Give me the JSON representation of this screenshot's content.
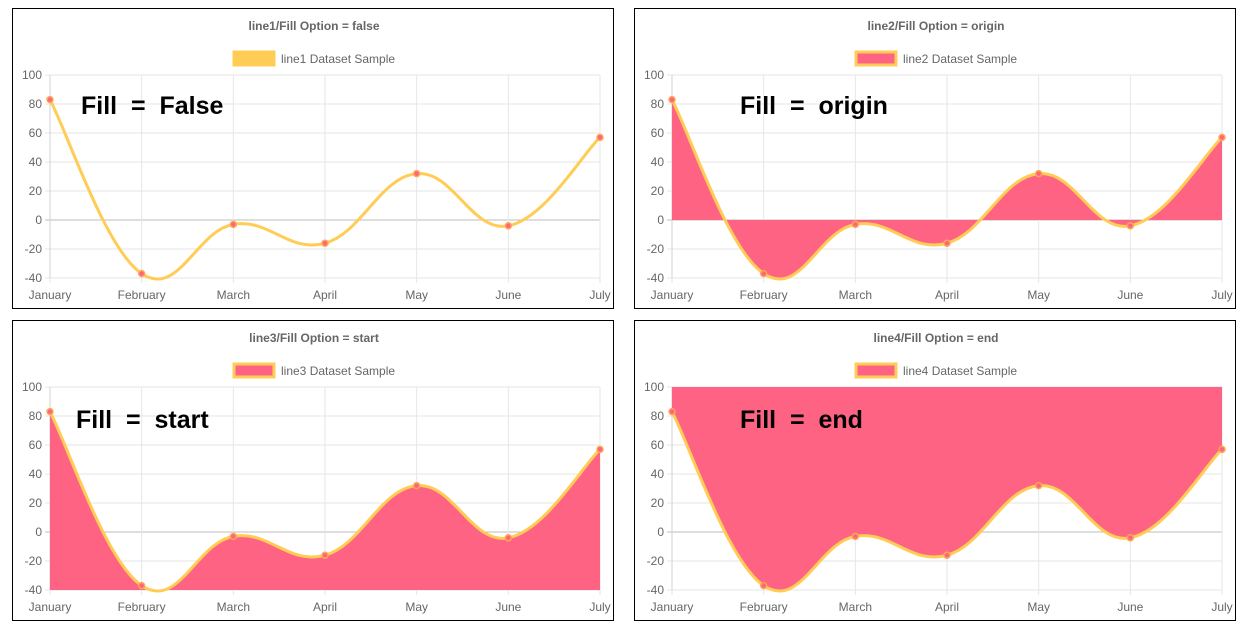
{
  "chart_data": [
    {
      "type": "line",
      "title": "line1/Fill Option = false",
      "legend": "line1 Dataset Sample",
      "annotation": "Fill  =  False",
      "fill": "false",
      "categories": [
        "January",
        "February",
        "March",
        "April",
        "May",
        "June",
        "July"
      ],
      "series": [
        {
          "name": "line1 Dataset Sample",
          "values": [
            83,
            -37,
            -3,
            -16,
            32,
            -4,
            57
          ]
        }
      ],
      "ylim": [
        -40,
        100
      ],
      "yticks": [
        "100",
        "80",
        "60",
        "40",
        "20",
        "0",
        "-20",
        "-40"
      ],
      "line_color": "#ffcd56",
      "fill_color": "#ff6384",
      "legend_position": "top"
    },
    {
      "type": "line",
      "title": "line2/Fill Option = origin",
      "legend": "line2 Dataset Sample",
      "annotation": "Fill  =  origin",
      "fill": "origin",
      "categories": [
        "January",
        "February",
        "March",
        "April",
        "May",
        "June",
        "July"
      ],
      "series": [
        {
          "name": "line2 Dataset Sample",
          "values": [
            83,
            -37,
            -3,
            -16,
            32,
            -4,
            57
          ]
        }
      ],
      "ylim": [
        -40,
        100
      ],
      "yticks": [
        "100",
        "80",
        "60",
        "40",
        "20",
        "0",
        "-20",
        "-40"
      ],
      "line_color": "#ffcd56",
      "fill_color": "#ff6384",
      "legend_position": "top"
    },
    {
      "type": "area",
      "title": "line3/Fill Option = start",
      "legend": "line3 Dataset Sample",
      "annotation": "Fill  =  start",
      "fill": "start",
      "categories": [
        "January",
        "February",
        "March",
        "April",
        "May",
        "June",
        "July"
      ],
      "series": [
        {
          "name": "line3 Dataset Sample",
          "values": [
            83,
            -37,
            -3,
            -16,
            32,
            -4,
            57
          ]
        }
      ],
      "ylim": [
        -40,
        100
      ],
      "yticks": [
        "100",
        "80",
        "60",
        "40",
        "20",
        "0",
        "-20",
        "-40"
      ],
      "line_color": "#ffcd56",
      "fill_color": "#ff6384",
      "legend_position": "top"
    },
    {
      "type": "area",
      "title": "line4/Fill Option = end",
      "legend": "line4 Dataset Sample",
      "annotation": "Fill  =  end",
      "fill": "end",
      "categories": [
        "January",
        "February",
        "March",
        "April",
        "May",
        "June",
        "July"
      ],
      "series": [
        {
          "name": "line4 Dataset Sample",
          "values": [
            83,
            -37,
            -3,
            -16,
            32,
            -4,
            57
          ]
        }
      ],
      "ylim": [
        -40,
        100
      ],
      "yticks": [
        "100",
        "80",
        "60",
        "40",
        "20",
        "0",
        "-20",
        "-40"
      ],
      "line_color": "#ffcd56",
      "fill_color": "#ff6384",
      "legend_position": "top"
    }
  ]
}
